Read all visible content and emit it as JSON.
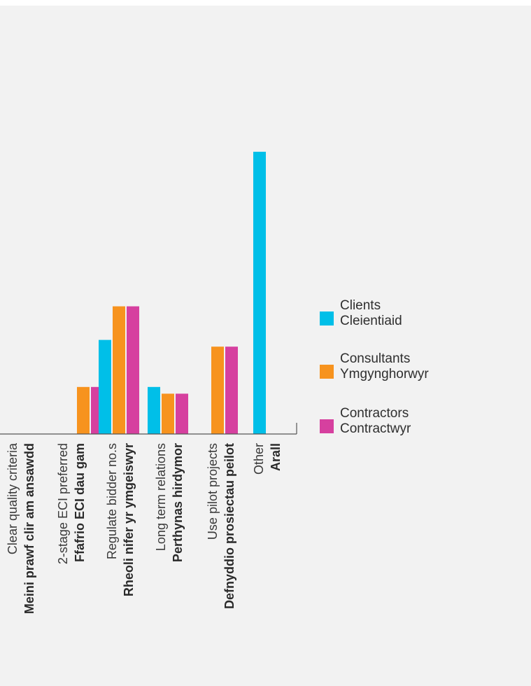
{
  "chart_data": {
    "type": "bar",
    "categories": [
      {
        "en": "Clear quality criteria",
        "cy": "Meini prawf clir am ansawdd"
      },
      {
        "en": "2-stage ECI preferred",
        "cy": "Ffafrio ECI dau gam"
      },
      {
        "en": "Regulate bidder no.s",
        "cy": "Rheoli nifer yr ymgeiswyr"
      },
      {
        "en": "Long term relations",
        "cy": "Perthynas hirdymor"
      },
      {
        "en": "Use pilot projects",
        "cy": "Defnyddio prosiectau peilot"
      },
      {
        "en": "Other",
        "cy": "Arall"
      }
    ],
    "series": [
      {
        "name": "Clients",
        "name_cy": "Cleientiaid",
        "color": "#00bfe8",
        "values": [
          0,
          0,
          14,
          7,
          0,
          42
        ]
      },
      {
        "name": "Consultants",
        "name_cy": "Ymgynghorwyr",
        "color": "#f7931e",
        "values": [
          0,
          7,
          19,
          6,
          13,
          0
        ]
      },
      {
        "name": "Contractors",
        "name_cy": "Contractwyr",
        "color": "#d6409f",
        "values": [
          0,
          7,
          19,
          6,
          13,
          0
        ]
      }
    ],
    "ylim": [
      0,
      50
    ],
    "grid": false,
    "legend_position": "right",
    "title": "",
    "xlabel": "",
    "ylabel": ""
  }
}
